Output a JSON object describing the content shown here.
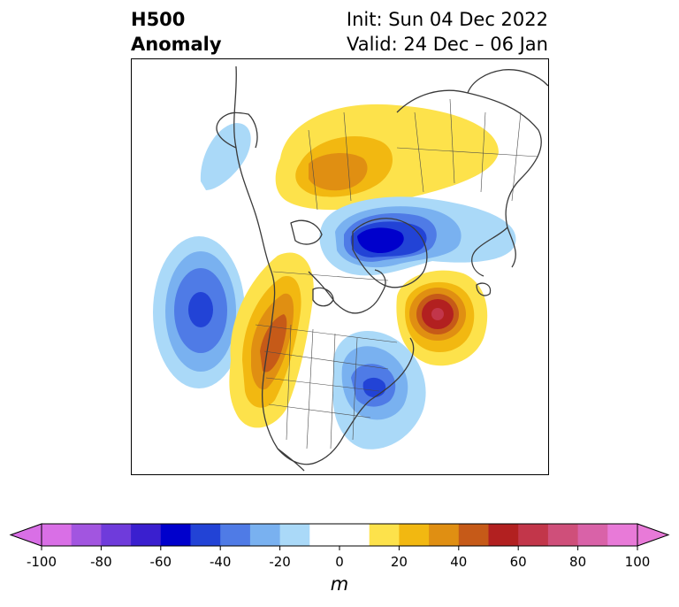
{
  "header": {
    "title_line1": "H500",
    "title_line2": "Anomaly",
    "init": "Init: Sun 04 Dec 2022",
    "valid": "Valid: 24 Dec – 06 Jan"
  },
  "colorbar": {
    "units": "m",
    "tick_labels": [
      "-100",
      "-80",
      "-60",
      "-40",
      "-20",
      "0",
      "20",
      "40",
      "60",
      "80",
      "100"
    ],
    "colors": [
      "#d96fe6",
      "#a255e0",
      "#6f3bdb",
      "#3a1fcf",
      "#0000cc",
      "#2243d6",
      "#4f7be6",
      "#79b1f0",
      "#aad9f8",
      "#ffffff",
      "#ffffff",
      "#fde24b",
      "#f2b811",
      "#e08f12",
      "#c65a18",
      "#b22020",
      "#c2364a",
      "#cf4f7a",
      "#d962a8",
      "#e87ad8"
    ],
    "extend_low_color": "#d96fe6",
    "extend_high_color": "#e87ad8"
  },
  "map": {
    "projection": "polar stereographic, North America / Arctic",
    "features": [
      {
        "name": "north-pacific-positive-anomaly-off-west-coast",
        "sign": "positive",
        "peak_m": 60
      },
      {
        "name": "north-pacific-negative-anomaly",
        "sign": "negative",
        "peak_m": -60
      },
      {
        "name": "eastern-north-america-negative-anomaly",
        "sign": "negative",
        "peak_m": -60
      },
      {
        "name": "north-atlantic-positive-anomaly",
        "sign": "positive",
        "peak_m": 60
      },
      {
        "name": "arctic-negative-anomaly",
        "sign": "negative",
        "peak_m": -60
      },
      {
        "name": "siberia-positive-anomaly",
        "sign": "positive",
        "peak_m": 40
      }
    ]
  }
}
